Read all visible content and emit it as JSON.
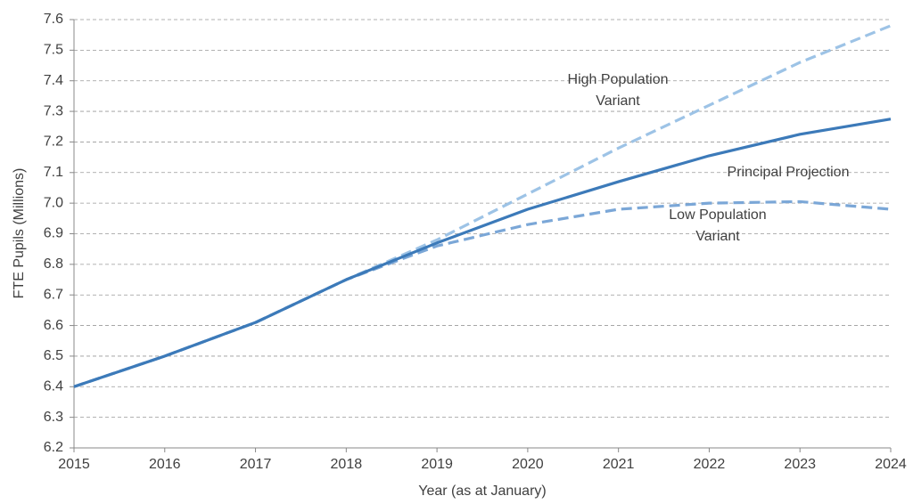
{
  "chart_data": {
    "type": "line",
    "x_label": "Year (as at January)",
    "y_label": "FTE Pupils (Millions)",
    "x": [
      2015,
      2016,
      2017,
      2018,
      2019,
      2020,
      2021,
      2022,
      2023,
      2024
    ],
    "xlim": [
      2015,
      2024
    ],
    "xticks": [
      2015,
      2016,
      2017,
      2018,
      2019,
      2020,
      2021,
      2022,
      2023,
      2024
    ],
    "ylim": [
      6.2,
      7.6
    ],
    "yticks": [
      6.2,
      6.3,
      6.4,
      6.5,
      6.6,
      6.7,
      6.8,
      6.9,
      {
        "value": 7,
        "label": "7.0"
      },
      7.1,
      7.2,
      7.3,
      7.4,
      7.5,
      7.6
    ],
    "grid": true,
    "series": [
      {
        "name": "High Population Variant",
        "color": "#9dc3e6",
        "dashed": true,
        "values": [
          6.4,
          6.5,
          6.61,
          6.75,
          6.88,
          7.03,
          7.18,
          7.32,
          7.46,
          7.58
        ]
      },
      {
        "name": "Low Population Variant",
        "color": "#7ba7d7",
        "dashed": true,
        "values": [
          6.4,
          6.5,
          6.61,
          6.75,
          6.86,
          6.93,
          6.98,
          7.0,
          7.005,
          6.98
        ]
      },
      {
        "name": "Principal Projection",
        "color": "#3c7ab9",
        "dashed": false,
        "values": [
          6.4,
          6.5,
          6.61,
          6.75,
          6.87,
          6.98,
          7.07,
          7.155,
          7.225,
          7.275
        ]
      }
    ]
  }
}
